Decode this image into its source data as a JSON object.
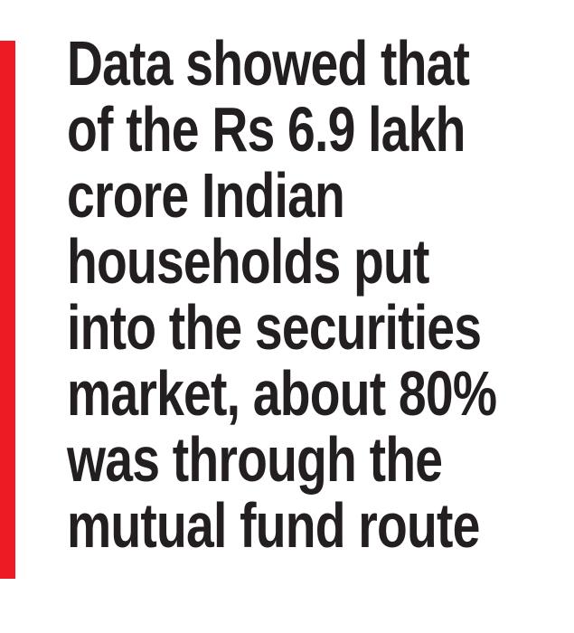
{
  "quote": {
    "lines": [
      "Data showed that",
      "of the Rs 6.9 lakh",
      "crore Indian",
      "households put",
      "into the securities",
      "market, about 80%",
      "was through the",
      "mutual fund route"
    ]
  }
}
